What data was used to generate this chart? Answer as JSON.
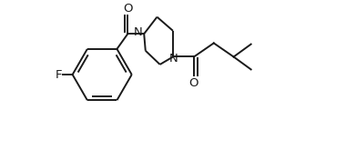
{
  "background_color": "#ffffff",
  "line_color": "#1a1a1a",
  "label_color": "#1a1a1a",
  "line_width": 1.4,
  "font_size": 9.5,
  "figsize": [
    3.91,
    1.76
  ],
  "dpi": 100,
  "xlim": [
    0.0,
    7.8
  ],
  "ylim": [
    -2.2,
    2.2
  ]
}
